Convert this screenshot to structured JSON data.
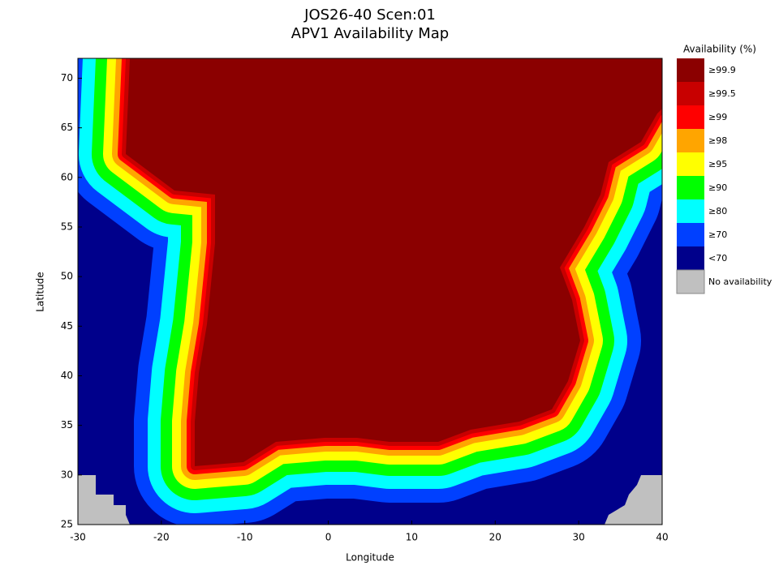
{
  "chart_data": {
    "type": "map",
    "title": "JOS26-40 Scen:01",
    "subtitle": "APV1 Availability Map",
    "x_label": "Longitude",
    "y_label": "Latitude",
    "xlim": [
      -30,
      40
    ],
    "ylim": [
      25,
      72
    ],
    "xticks": [
      -30,
      -20,
      -10,
      0,
      10,
      20,
      30,
      40
    ],
    "yticks": [
      25,
      30,
      35,
      40,
      45,
      50,
      55,
      60,
      65,
      70
    ],
    "legend": {
      "title": "Availability (%)",
      "items": [
        {
          "label": "≥99.9",
          "color": "#8b0000"
        },
        {
          "label": "≥99.5",
          "color": "#c80000"
        },
        {
          "label": "≥99",
          "color": "#ff0000"
        },
        {
          "label": "≥98",
          "color": "#ffa500"
        },
        {
          "label": "≥95",
          "color": "#ffff00"
        },
        {
          "label": "≥90",
          "color": "#00ff00"
        },
        {
          "label": "≥80",
          "color": "#00ffff"
        },
        {
          "label": "≥70",
          "color": "#0040ff"
        },
        {
          "label": "<70",
          "color": "#00008b"
        },
        {
          "label": "No availability",
          "color": "#c0c0c0"
        }
      ]
    }
  }
}
